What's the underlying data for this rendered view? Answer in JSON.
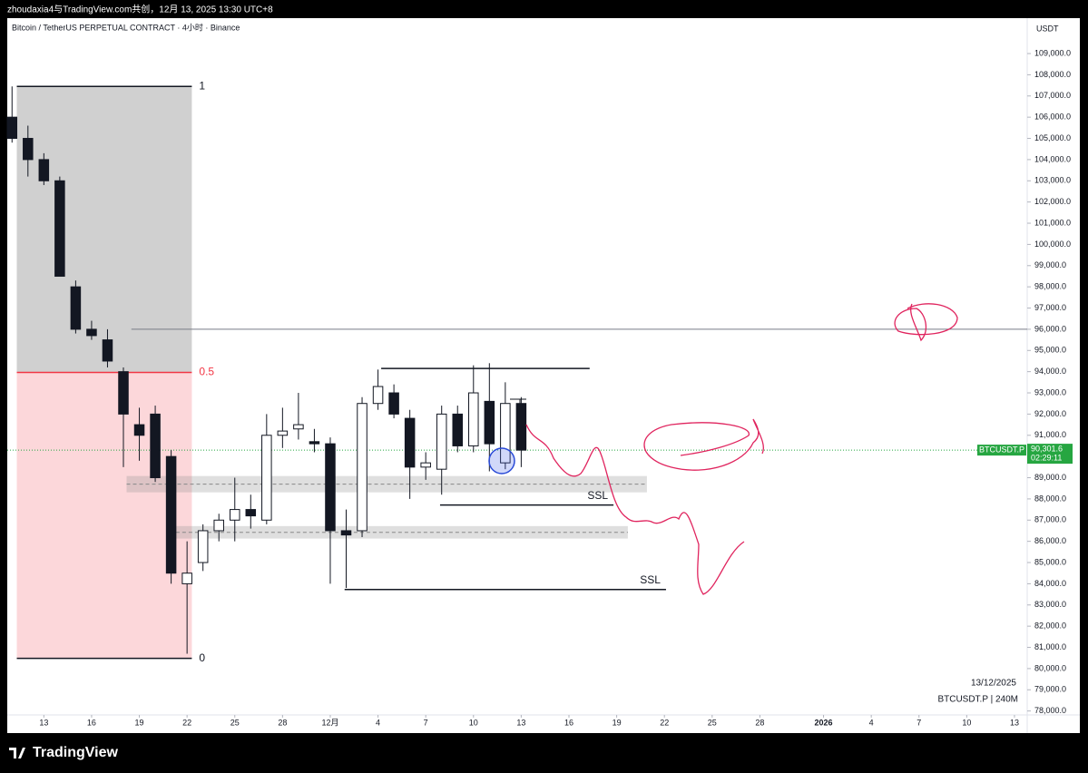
{
  "header": {
    "text": "zhoudaxia4与TradingView.com共创，12月 13, 2025 13:30 UTC+8"
  },
  "footer": {
    "logo": "TradingView"
  },
  "chart_data": {
    "type": "candlestick",
    "title": "Bitcoin / TetherUS PERPETUAL CONTRACT · 4小时 · Binance",
    "currency": "USDT",
    "symbol_tag": "BTCUSDT.P",
    "last_price": 90301.6,
    "last_price_label": "90,301.6",
    "countdown": "02:29:11",
    "date_stamp": "13/12/2025",
    "interval_stamp": "BTCUSDT.P | 240M",
    "up_color": "#ffffff",
    "down_color": "#131722",
    "wick_color": "#131722",
    "tag_color": "#26a641",
    "x": [
      -2,
      -1,
      0,
      1,
      2,
      3,
      4,
      5,
      6,
      7,
      8,
      9,
      10,
      11,
      12,
      13,
      14,
      15,
      16,
      17,
      18,
      19,
      20,
      21,
      22,
      23,
      24,
      25,
      26,
      27,
      28,
      29,
      30
    ],
    "open": [
      106000,
      105000,
      104000,
      103000,
      98000,
      96000,
      95500,
      94000,
      91500,
      92000,
      90000,
      84000,
      85000,
      86500,
      87000,
      87500,
      87000,
      91000,
      91300,
      90700,
      90600,
      86500,
      86500,
      92500,
      93000,
      91800,
      89500,
      89400,
      92000,
      90500,
      92600,
      89700,
      92500
    ],
    "high": [
      107450,
      105600,
      104300,
      103200,
      98300,
      96400,
      96000,
      94200,
      92300,
      92400,
      90300,
      86000,
      86800,
      87300,
      89000,
      88200,
      92000,
      92300,
      93000,
      91300,
      90900,
      87500,
      92800,
      94100,
      93400,
      92200,
      90200,
      92400,
      92400,
      94300,
      94400,
      93500,
      92800
    ],
    "low": [
      104800,
      103200,
      102800,
      98700,
      95800,
      95500,
      94200,
      89500,
      89800,
      88800,
      84000,
      80700,
      84600,
      86000,
      86000,
      86600,
      86800,
      90400,
      90800,
      90200,
      84000,
      83800,
      86200,
      92200,
      91800,
      88000,
      88900,
      88200,
      90200,
      90200,
      89300,
      89400,
      89500
    ],
    "close": [
      105000,
      104000,
      103000,
      98500,
      96000,
      95700,
      94500,
      92000,
      91000,
      89000,
      84500,
      84500,
      86500,
      87000,
      87500,
      87200,
      91000,
      91200,
      91500,
      90600,
      86500,
      86300,
      92500,
      93300,
      92000,
      89500,
      89700,
      92000,
      90500,
      93000,
      90600,
      92500,
      90300
    ],
    "xlim": [
      -2.3,
      61.8
    ],
    "ylim": [
      77600,
      109600
    ],
    "xticks": [
      {
        "value": 0,
        "label": "13"
      },
      {
        "value": 3,
        "label": "16"
      },
      {
        "value": 6,
        "label": "19"
      },
      {
        "value": 9,
        "label": "22"
      },
      {
        "value": 12,
        "label": "25"
      },
      {
        "value": 15,
        "label": "28"
      },
      {
        "value": 18,
        "label": "12月"
      },
      {
        "value": 21,
        "label": "4"
      },
      {
        "value": 24,
        "label": "7"
      },
      {
        "value": 27,
        "label": "10"
      },
      {
        "value": 30,
        "label": "13"
      },
      {
        "value": 33,
        "label": "16"
      },
      {
        "value": 36,
        "label": "19"
      },
      {
        "value": 39,
        "label": "22"
      },
      {
        "value": 42,
        "label": "25"
      },
      {
        "value": 45,
        "label": "28"
      },
      {
        "value": 49,
        "label": "2026"
      },
      {
        "value": 52,
        "label": "4"
      },
      {
        "value": 55,
        "label": "7"
      },
      {
        "value": 58,
        "label": "10"
      },
      {
        "value": 61,
        "label": "13"
      }
    ],
    "yticks": [
      {
        "value": 109000,
        "label": "109,000.0"
      },
      {
        "value": 108000,
        "label": "108,000.0"
      },
      {
        "value": 107000,
        "label": "107,000.0"
      },
      {
        "value": 106000,
        "label": "106,000.0"
      },
      {
        "value": 105000,
        "label": "105,000.0"
      },
      {
        "value": 104000,
        "label": "104,000.0"
      },
      {
        "value": 103000,
        "label": "103,000.0"
      },
      {
        "value": 102000,
        "label": "102,000.0"
      },
      {
        "value": 101000,
        "label": "101,000.0"
      },
      {
        "value": 100000,
        "label": "100,000.0"
      },
      {
        "value": 99000,
        "label": "99,000.0"
      },
      {
        "value": 98000,
        "label": "98,000.0"
      },
      {
        "value": 97000,
        "label": "97,000.0"
      },
      {
        "value": 96000,
        "label": "96,000.0"
      },
      {
        "value": 95000,
        "label": "95,000.0"
      },
      {
        "value": 94000,
        "label": "94,000.0"
      },
      {
        "value": 93000,
        "label": "93,000.0"
      },
      {
        "value": 92000,
        "label": "92,000.0"
      },
      {
        "value": 91000,
        "label": "91,000.0"
      },
      {
        "value": 90000,
        "label": "90,000.0"
      },
      {
        "value": 89000,
        "label": "89,000.0"
      },
      {
        "value": 88000,
        "label": "88,000.0"
      },
      {
        "value": 87000,
        "label": "87,000.0"
      },
      {
        "value": 86000,
        "label": "86,000.0"
      },
      {
        "value": 85000,
        "label": "85,000.0"
      },
      {
        "value": 84000,
        "label": "84,000.0"
      },
      {
        "value": 83000,
        "label": "83,000.0"
      },
      {
        "value": 82000,
        "label": "82,000.0"
      },
      {
        "value": 81000,
        "label": "81,000.0"
      },
      {
        "value": 80000,
        "label": "80,000.0"
      },
      {
        "value": 79000,
        "label": "79,000.0"
      },
      {
        "value": 78000,
        "label": "78,000.0"
      }
    ],
    "fib": {
      "from": -1.7,
      "to": 9.3,
      "top": 107450,
      "bottom": 80480,
      "labels": [
        "1",
        "0.5",
        "0"
      ]
    },
    "hlines": [
      {
        "price": 96000,
        "from": 5.5
      },
      {
        "price": 94150,
        "from": 21.2,
        "to": 34.3
      },
      {
        "price": 87710,
        "from": 24.9,
        "to": 35.8,
        "label": "SSL"
      },
      {
        "price": 83730,
        "from": 18.9,
        "to": 39.1,
        "label": "SSL"
      }
    ],
    "zones": [
      {
        "top": 89080,
        "bottom": 88310,
        "from": 5.2,
        "to": 37.9
      },
      {
        "top": 86720,
        "bottom": 86130,
        "from": 8.3,
        "to": 36.7
      }
    ]
  }
}
